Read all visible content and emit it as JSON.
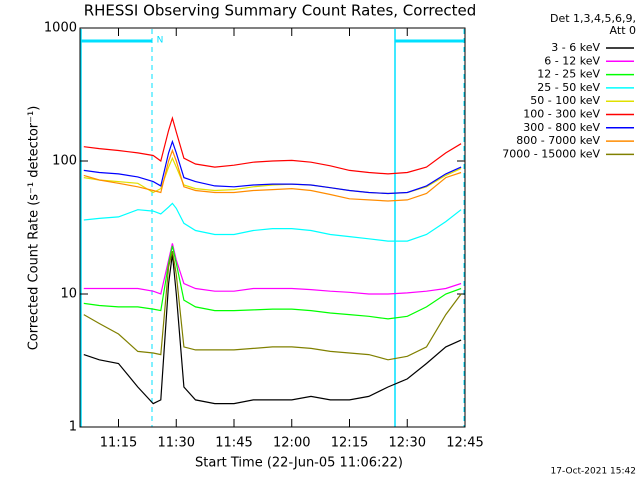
{
  "chart_data": {
    "type": "line",
    "title": "RHESSI Observing Summary Count Rates, Corrected",
    "x_label": "Start Time (22-Jun-05 11:06:22)",
    "y_label": "Corrected Count Rate (s⁻¹ detector⁻¹)",
    "legend_header": [
      "Det 1,3,4,5,6,9,",
      "Att 0"
    ],
    "timestamp": "17-Oct-2021 15:42",
    "marker_label": "N",
    "yscale": "log",
    "xlim": [
      "11:05",
      "12:45"
    ],
    "xticks": [
      "11:15",
      "11:30",
      "11:45",
      "12:00",
      "12:15",
      "12:30",
      "12:45"
    ],
    "ylim": [
      1,
      1000
    ],
    "yticks": [
      1,
      10,
      100,
      1000
    ],
    "legend": "right",
    "x": [
      "11:06",
      "11:10",
      "11:15",
      "11:20",
      "11:24",
      "11:26",
      "11:28",
      "11:29",
      "11:30",
      "11:32",
      "11:35",
      "11:40",
      "11:45",
      "11:50",
      "11:55",
      "12:00",
      "12:05",
      "12:10",
      "12:15",
      "12:20",
      "12:25",
      "12:30",
      "12:35",
      "12:40",
      "12:44"
    ],
    "series": [
      {
        "name": "3 - 6 keV",
        "color": "#000000",
        "values": [
          3.5,
          3.2,
          3,
          2,
          1.5,
          1.6,
          12,
          20,
          10,
          2,
          1.6,
          1.5,
          1.5,
          1.6,
          1.6,
          1.6,
          1.7,
          1.6,
          1.6,
          1.7,
          2,
          2.3,
          3,
          4,
          4.5
        ]
      },
      {
        "name": "6 - 12 keV",
        "color": "#ff00ff",
        "values": [
          11,
          11,
          11,
          11,
          10.5,
          10,
          18,
          24,
          18,
          12,
          11,
          10.5,
          10.5,
          11,
          11,
          11,
          10.8,
          10.5,
          10.3,
          10,
          10,
          10.2,
          10.5,
          11,
          12
        ]
      },
      {
        "name": "12 - 25 keV",
        "color": "#00ff00",
        "values": [
          8.5,
          8.2,
          8,
          8,
          7.7,
          7.5,
          17,
          23,
          17,
          9,
          8,
          7.5,
          7.5,
          7.6,
          7.7,
          7.7,
          7.5,
          7.2,
          7,
          6.8,
          6.5,
          6.8,
          8,
          10,
          11
        ]
      },
      {
        "name": "25 - 50 keV",
        "color": "#00ffff",
        "values": [
          36,
          37,
          38,
          43,
          42,
          40,
          45,
          48,
          44,
          34,
          30,
          28,
          28,
          30,
          31,
          31,
          30,
          28,
          27,
          26,
          25,
          25,
          28,
          35,
          43
        ]
      },
      {
        "name": "50 - 100 keV",
        "color": "#e0e000",
        "values": [
          75,
          72,
          70,
          68,
          58,
          62,
          90,
          105,
          90,
          66,
          62,
          60,
          61,
          64,
          66,
          67,
          66,
          63,
          60,
          58,
          57,
          58,
          64,
          78,
          88
        ]
      },
      {
        "name": "100 - 300 keV",
        "color": "#ff0000",
        "values": [
          128,
          124,
          120,
          115,
          110,
          100,
          170,
          210,
          165,
          105,
          95,
          90,
          93,
          98,
          100,
          101,
          98,
          92,
          85,
          82,
          80,
          82,
          90,
          115,
          135
        ]
      },
      {
        "name": "300 - 800 keV",
        "color": "#0000ff",
        "values": [
          85,
          82,
          80,
          76,
          70,
          65,
          115,
          140,
          115,
          75,
          70,
          65,
          64,
          66,
          67,
          67,
          66,
          63,
          60,
          58,
          57,
          58,
          65,
          80,
          90
        ]
      },
      {
        "name": "800 - 7000 keV",
        "color": "#ff8c00",
        "values": [
          78,
          72,
          68,
          64,
          60,
          58,
          100,
          120,
          100,
          64,
          60,
          58,
          58,
          60,
          61,
          62,
          60,
          56,
          52,
          51,
          50,
          51,
          57,
          75,
          82
        ]
      },
      {
        "name": "7000 - 15000 keV",
        "color": "#808000",
        "values": [
          7,
          6,
          5,
          3.7,
          3.6,
          3.5,
          16,
          21,
          14,
          4,
          3.8,
          3.8,
          3.8,
          3.9,
          4,
          4,
          3.9,
          3.7,
          3.6,
          3.5,
          3.2,
          3.4,
          4,
          7,
          10
        ]
      }
    ]
  }
}
